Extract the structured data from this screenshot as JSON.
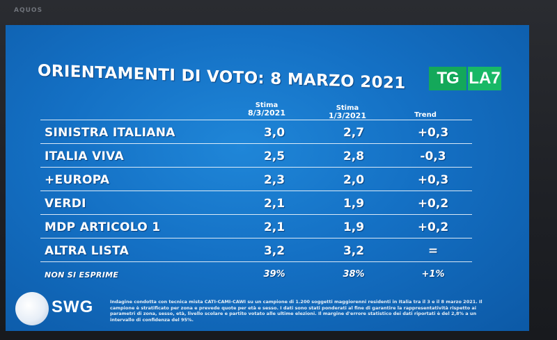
{
  "device": {
    "brand": "AQUOS"
  },
  "title": "ORIENTAMENTI DI VOTO: 8 MARZO 2021",
  "logo": {
    "left": "TG",
    "right": "LA7"
  },
  "columns": [
    {
      "line1": "Stima",
      "line2": "8/3/2021"
    },
    {
      "line1": "Stima",
      "line2": "1/3/2021"
    },
    {
      "line1": "Trend",
      "line2": ""
    }
  ],
  "rows": [
    {
      "party": "SINISTRA ITALIANA",
      "stima_8_3": "3,0",
      "stima_1_3": "2,7",
      "trend": "+0,3"
    },
    {
      "party": "ITALIA VIVA",
      "stima_8_3": "2,5",
      "stima_1_3": "2,8",
      "trend": "-0,3"
    },
    {
      "party": "+EUROPA",
      "stima_8_3": "2,3",
      "stima_1_3": "2,0",
      "trend": "+0,3"
    },
    {
      "party": "VERDI",
      "stima_8_3": "2,1",
      "stima_1_3": "1,9",
      "trend": "+0,2"
    },
    {
      "party": "MDP ARTICOLO 1",
      "stima_8_3": "2,1",
      "stima_1_3": "1,9",
      "trend": "+0,2"
    },
    {
      "party": "ALTRA LISTA",
      "stima_8_3": "3,2",
      "stima_1_3": "3,2",
      "trend": "="
    },
    {
      "party": "NON SI ESPRIME",
      "stima_8_3": "39%",
      "stima_1_3": "38%",
      "trend": "+1%"
    }
  ],
  "footer": {
    "logo_text": "SWG",
    "note": "Indagine condotta con tecnica mista CATI-CAMI-CAWI su un campione di 1.200 soggetti maggiorenni residenti in Italia tra il 3 e il 8 marzo 2021. Il campione è stratificato per zona e prevede quote per età e sesso. I dati sono stati ponderati al fine di garantire la rappresentatività rispetto ai parametri di zona, sesso, età, livello scolare e partito votato alle ultime elezioni. Il margine d'errore statistico dei dati riportati è del 2,8% a un intervallo di confidenza del 95%."
  },
  "colors": {
    "screen_blue": "#1470c4",
    "logo_green": "#14a85a",
    "text": "#ffffff"
  }
}
